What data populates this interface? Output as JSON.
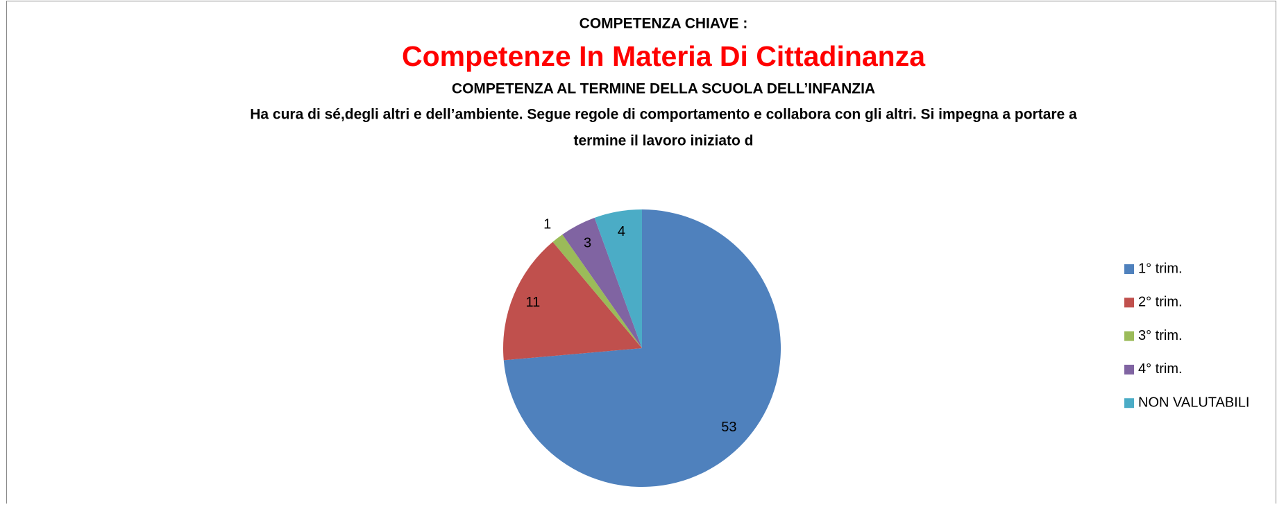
{
  "chart_data": {
    "type": "pie",
    "supertitle": "COMPETENZA CHIAVE :",
    "title": "Competenze In Materia Di Cittadinanza",
    "subtitle": "COMPETENZA AL TERMINE DELLA SCUOLA DELL’INFANZIA",
    "description": [
      "Ha cura di sé,degli altri e dell’ambiente. Segue regole di comportamento e collabora con gli altri. Si impegna a portare a",
      "termine il lavoro iniziato d"
    ],
    "categories": [
      "1° trim.",
      "2° trim.",
      "3° trim.",
      "4° trim.",
      "NON VALUTABILI"
    ],
    "values": [
      53,
      11,
      1,
      3,
      4
    ],
    "colors": [
      "#4f81bd",
      "#c0504d",
      "#9bbb59",
      "#8064a2",
      "#4bacc6"
    ],
    "legend": "right"
  }
}
